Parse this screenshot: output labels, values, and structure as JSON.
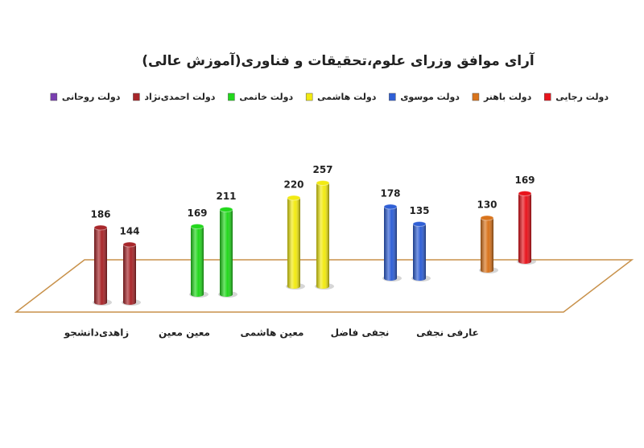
{
  "chart_data": {
    "type": "bar",
    "title": "آرای موافق وزرای علوم،تحقیقات و فناوری(آموزش عالی)",
    "series": [
      {
        "name": "دولت رجایی",
        "color": "#e8141c"
      },
      {
        "name": "دولت باهنر",
        "color": "#d9741c"
      },
      {
        "name": "دولت موسوی",
        "color": "#2f5fd6"
      },
      {
        "name": "دولت هاشمی",
        "color": "#f2ea12"
      },
      {
        "name": "دولت خاتمی",
        "color": "#22d81c"
      },
      {
        "name": "دولت احمدی‌نژاد",
        "color": "#a8262a"
      },
      {
        "name": "دولت روحانی",
        "color": "#7a3fb0"
      }
    ],
    "groups": [
      {
        "label": "زاهدی‌دانشجو",
        "bars": [
          {
            "value": 186,
            "color": "#a8262a"
          },
          {
            "value": 144,
            "color": "#a8262a"
          }
        ]
      },
      {
        "label": "معین  معین",
        "bars": [
          {
            "value": 169,
            "color": "#22d81c"
          },
          {
            "value": 211,
            "color": "#22d81c"
          }
        ]
      },
      {
        "label": "معین هاشمی",
        "bars": [
          {
            "value": 220,
            "color": "#f2ea12"
          },
          {
            "value": 257,
            "color": "#f2ea12"
          }
        ]
      },
      {
        "label": "نجفی  فاضل",
        "bars": [
          {
            "value": 178,
            "color": "#2f5fd6"
          },
          {
            "value": 135,
            "color": "#2f5fd6"
          }
        ]
      },
      {
        "label": "عارفی نجفی",
        "bars": [
          {
            "value": 130,
            "color": "#d9741c"
          },
          {
            "value": 169,
            "color": "#e8141c"
          }
        ]
      }
    ]
  }
}
